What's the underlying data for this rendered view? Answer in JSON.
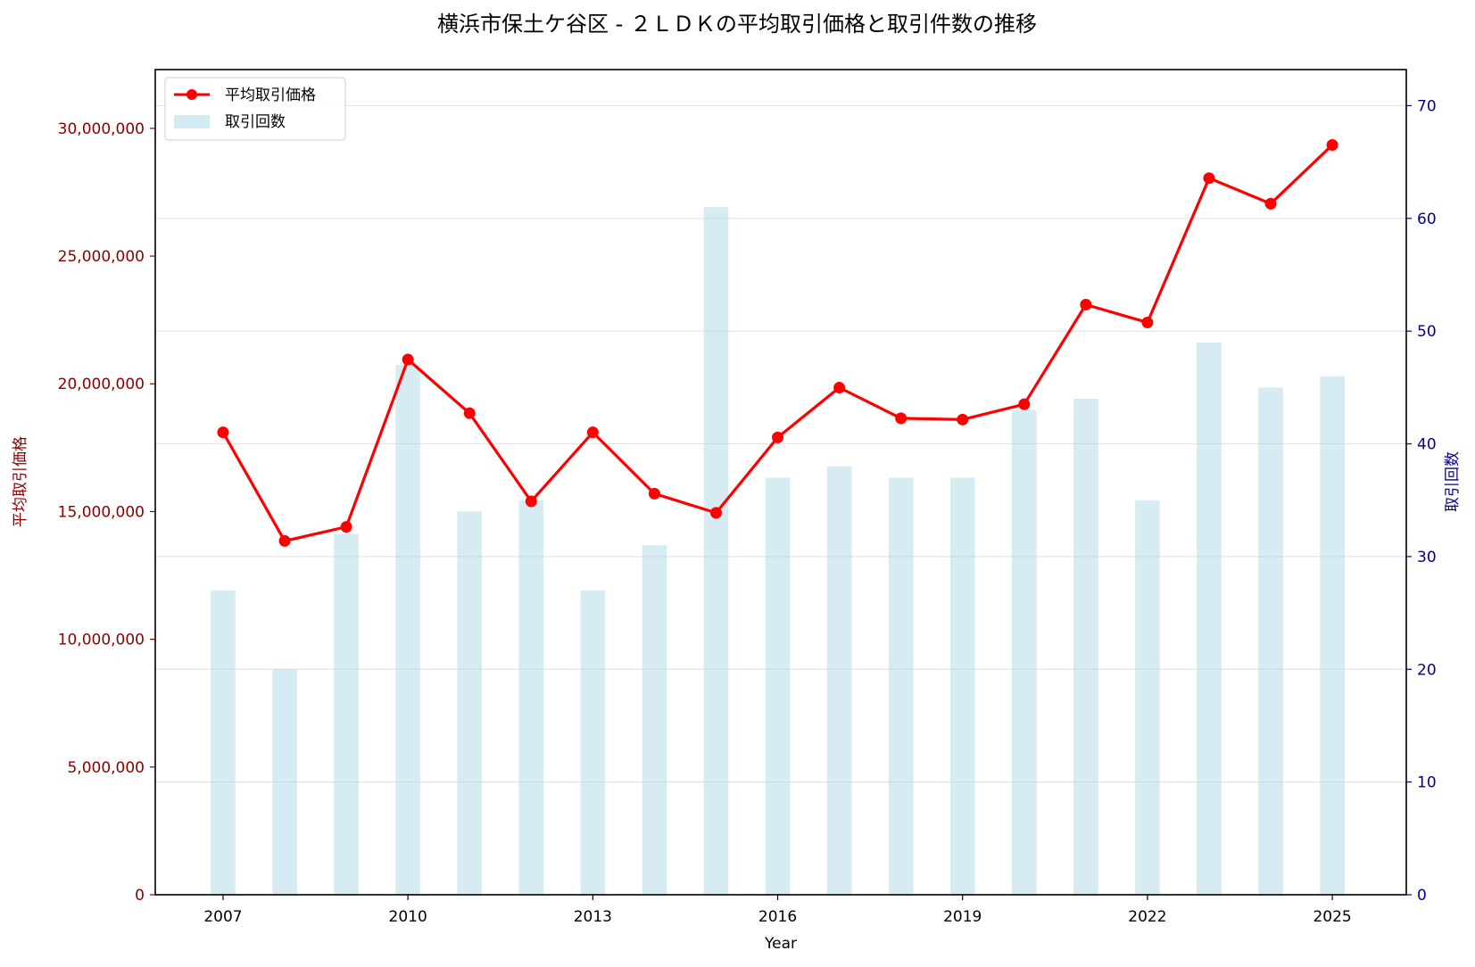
{
  "chart_data": {
    "type": "bar+line",
    "title": "横浜市保土ケ谷区 - ２ＬＤＫの平均取引価格と取引件数の推移",
    "xlabel": "Year",
    "ylabel_left": "平均取引価格",
    "ylabel_right": "取引回数",
    "x": [
      2007,
      2008,
      2009,
      2010,
      2011,
      2012,
      2013,
      2014,
      2015,
      2016,
      2017,
      2018,
      2019,
      2020,
      2021,
      2022,
      2023,
      2024,
      2025
    ],
    "x_ticks": [
      "2007",
      "2010",
      "2013",
      "2016",
      "2019",
      "2022",
      "2025"
    ],
    "x_range": [
      2005.9,
      2026.2
    ],
    "y_left_range": [
      0,
      32300000
    ],
    "y_left_ticks": [
      "0",
      "5,000,000",
      "10,000,000",
      "15,000,000",
      "20,000,000",
      "25,000,000",
      "30,000,000"
    ],
    "y_right_range": [
      0,
      73.2
    ],
    "y_right_ticks": [
      "0",
      "10",
      "20",
      "30",
      "40",
      "50",
      "60",
      "70"
    ],
    "grid": "horizontal (right axis)",
    "legend_placement": "top-left",
    "series": [
      {
        "name": "平均取引価格",
        "kind": "line",
        "axis": "left",
        "color": "#ff0000",
        "values": [
          18100000,
          13850000,
          14400000,
          20950000,
          18850000,
          15400000,
          18100000,
          15700000,
          14950000,
          17900000,
          19850000,
          18650000,
          18600000,
          19200000,
          23100000,
          22400000,
          28050000,
          27050000,
          29350000
        ]
      },
      {
        "name": "取引回数",
        "kind": "bar",
        "axis": "right",
        "color": "#add8e6",
        "values": [
          27,
          20,
          32,
          47,
          34,
          35,
          27,
          31,
          61,
          37,
          38,
          37,
          37,
          43,
          44,
          35,
          49,
          45,
          46
        ]
      }
    ],
    "colors": {
      "left_axis": "#8b0000",
      "right_axis": "#00008b",
      "grid": "#dddddd"
    }
  }
}
